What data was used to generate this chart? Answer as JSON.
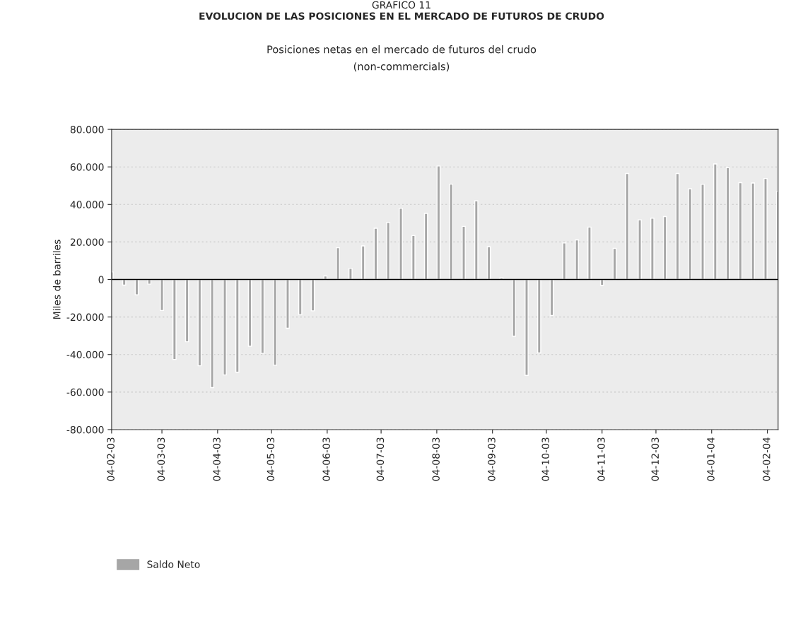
{
  "chart_data": {
    "type": "bar",
    "title": "EVOLUCION DE LAS POSICIONES EN EL MERCADO DE FUTUROS DE CRUDO",
    "subtitle": "Posiciones netas en el mercado de futuros del crudo\n(non-commercials)",
    "ylabel": "Miles de barriles",
    "annotations": [
      "GRAFICO 11"
    ],
    "x": [
      "2003-02-04",
      "2003-02-11",
      "2003-02-18",
      "2003-02-25",
      "2003-03-04",
      "2003-03-11",
      "2003-03-18",
      "2003-03-25",
      "2003-04-01",
      "2003-04-08",
      "2003-04-15",
      "2003-04-22",
      "2003-04-29",
      "2003-05-06",
      "2003-05-13",
      "2003-05-20",
      "2003-05-27",
      "2003-06-03",
      "2003-06-10",
      "2003-06-17",
      "2003-06-24",
      "2003-07-01",
      "2003-07-08",
      "2003-07-15",
      "2003-07-22",
      "2003-07-29",
      "2003-08-05",
      "2003-08-12",
      "2003-08-19",
      "2003-08-26",
      "2003-09-02",
      "2003-09-09",
      "2003-09-16",
      "2003-09-23",
      "2003-09-30",
      "2003-10-07",
      "2003-10-14",
      "2003-10-21",
      "2003-10-28",
      "2003-11-04",
      "2003-11-11",
      "2003-11-18",
      "2003-11-25",
      "2003-12-02",
      "2003-12-09",
      "2003-12-16",
      "2003-12-23",
      "2003-12-30",
      "2004-01-06",
      "2004-01-13",
      "2004-01-20",
      "2004-01-27",
      "2004-02-03",
      "2004-02-10"
    ],
    "series": [
      {
        "name": "Saldo Neto",
        "color": "#a6a6a6",
        "values": [
          4000,
          -3000,
          -8200,
          -2500,
          -16500,
          -42600,
          -33200,
          -46000,
          -57600,
          -50900,
          -49400,
          -35600,
          -39400,
          -45700,
          -26000,
          -18700,
          -16700,
          1900,
          16900,
          5900,
          17900,
          27300,
          30400,
          37900,
          23400,
          35200,
          60500,
          50800,
          28300,
          41900,
          17400,
          900,
          -30200,
          -51100,
          -39100,
          -19200,
          19500,
          21100,
          27900,
          -3100,
          16600,
          56500,
          31800,
          32700,
          33500,
          56500,
          48300,
          50700,
          61600,
          59600,
          51600,
          51400,
          53800,
          47000
        ]
      }
    ],
    "xlim": [
      "2003-02-04",
      "2004-02-10"
    ],
    "xticks": [
      {
        "value": "2003-02-04",
        "label": "04-02-03"
      },
      {
        "value": "2003-03-04",
        "label": "04-03-03"
      },
      {
        "value": "2003-04-04",
        "label": "04-04-03"
      },
      {
        "value": "2003-05-04",
        "label": "04-05-03"
      },
      {
        "value": "2003-06-04",
        "label": "04-06-03"
      },
      {
        "value": "2003-07-04",
        "label": "04-07-03"
      },
      {
        "value": "2003-08-04",
        "label": "04-08-03"
      },
      {
        "value": "2003-09-04",
        "label": "04-09-03"
      },
      {
        "value": "2003-10-04",
        "label": "04-10-03"
      },
      {
        "value": "2003-11-04",
        "label": "04-11-03"
      },
      {
        "value": "2003-12-04",
        "label": "04-12-03"
      },
      {
        "value": "2004-01-04",
        "label": "04-01-04"
      },
      {
        "value": "2004-02-04",
        "label": "04-02-04"
      }
    ],
    "ylim": [
      -80000,
      80000
    ],
    "yticks": [
      {
        "value": -80000,
        "label": "-80.000"
      },
      {
        "value": -60000,
        "label": "-60.000"
      },
      {
        "value": -40000,
        "label": "-40.000"
      },
      {
        "value": -20000,
        "label": "-20.000"
      },
      0,
      {
        "value": 20000,
        "label": "20.000"
      },
      {
        "value": 40000,
        "label": "40.000"
      },
      {
        "value": 60000,
        "label": "60.000"
      },
      {
        "value": 80000,
        "label": "80.000"
      }
    ],
    "ref_lines": [
      {
        "axis": "y",
        "value": 0,
        "color": "#000000"
      }
    ],
    "grid": "y",
    "legend": "bottom left"
  }
}
